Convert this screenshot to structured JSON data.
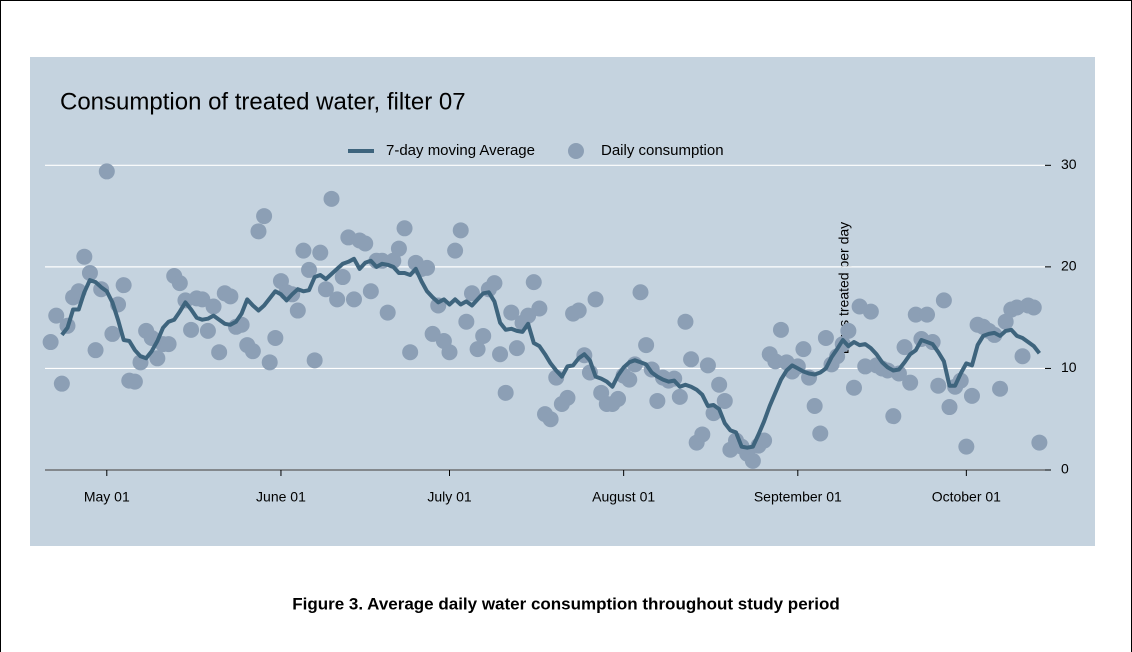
{
  "chart_data": {
    "type": "line",
    "title": "Consumption of treated water, filter 07",
    "y_label": "Litres treated per day",
    "legend": "top",
    "grid": true,
    "xlim": [
      110,
      288
    ],
    "xticks": [
      {
        "value": 121,
        "label": "May 01"
      },
      {
        "value": 152,
        "label": "June 01"
      },
      {
        "value": 182,
        "label": "July 01"
      },
      {
        "value": 213,
        "label": "August 01"
      },
      {
        "value": 244,
        "label": "September 01"
      },
      {
        "value": 274,
        "label": "October 01"
      }
    ],
    "ylim": [
      0,
      32
    ],
    "yticks": [
      0,
      10,
      20,
      30
    ],
    "x": [
      111,
      112,
      113,
      114,
      115,
      116,
      117,
      118,
      119,
      120,
      121,
      122,
      123,
      124,
      125,
      126,
      127,
      128,
      129,
      130,
      131,
      132,
      133,
      134,
      135,
      136,
      137,
      138,
      139,
      140,
      141,
      142,
      143,
      144,
      145,
      146,
      147,
      148,
      149,
      150,
      151,
      152,
      153,
      154,
      155,
      156,
      157,
      158,
      159,
      160,
      161,
      162,
      163,
      164,
      165,
      166,
      167,
      168,
      169,
      170,
      171,
      172,
      173,
      174,
      175,
      176,
      177,
      178,
      179,
      180,
      181,
      182,
      183,
      184,
      185,
      186,
      187,
      188,
      189,
      190,
      191,
      192,
      193,
      194,
      195,
      196,
      197,
      198,
      199,
      200,
      201,
      202,
      203,
      204,
      205,
      206,
      207,
      208,
      209,
      210,
      211,
      212,
      213,
      214,
      215,
      216,
      217,
      218,
      219,
      220,
      221,
      222,
      223,
      224,
      225,
      226,
      227,
      228,
      229,
      230,
      231,
      232,
      233,
      234,
      235,
      236,
      237,
      238,
      239,
      240,
      241,
      242,
      243,
      244,
      245,
      246,
      247,
      248,
      249,
      250,
      251,
      252,
      253,
      254,
      255,
      256,
      257,
      258,
      259,
      260,
      261,
      262,
      263,
      264,
      265,
      266,
      267,
      268,
      269,
      270,
      271,
      272,
      273,
      274,
      275,
      276,
      277,
      278,
      279,
      280,
      281,
      282,
      283,
      284,
      285,
      286,
      287
    ],
    "series": [
      {
        "name": "7-day moving Average",
        "type": "line",
        "color": "#3e647d",
        "values": [
          null,
          null,
          13.3,
          14,
          15.8,
          15.8,
          17.5,
          18.7,
          18.5,
          18,
          17.6,
          16.5,
          14.8,
          12.8,
          12.7,
          11.8,
          11.2,
          11,
          11.7,
          12.7,
          14,
          14.6,
          14.8,
          15.6,
          16.5,
          15.8,
          15,
          14.8,
          14.9,
          15.2,
          14.8,
          14.4,
          14.3,
          14.6,
          15.4,
          16.8,
          16.2,
          15.7,
          16.2,
          16.9,
          17.6,
          17.3,
          16.7,
          17.3,
          17.8,
          17.6,
          17.7,
          19,
          19.2,
          18.8,
          19.3,
          19.8,
          20.3,
          20.5,
          20.8,
          19.8,
          20.4,
          20.6,
          20,
          20.3,
          20.2,
          20,
          19.4,
          19.4,
          19.2,
          19.8,
          18.6,
          17.6,
          17,
          16.5,
          16.8,
          16.3,
          16.8,
          16.3,
          16.6,
          16.2,
          16.8,
          17.4,
          17.5,
          16.6,
          14.5,
          13.8,
          13.9,
          13.7,
          13.6,
          14.4,
          12.5,
          12.2,
          11.4,
          10.5,
          9.8,
          9.2,
          10.2,
          10.3,
          11,
          11.4,
          10.8,
          9.2,
          9,
          8.7,
          8.2,
          9.3,
          10.1,
          10.6,
          10.8,
          10.6,
          10.4,
          9.6,
          9.2,
          8.9,
          8.7,
          8.8,
          8.2,
          8.4,
          8.2,
          7.9,
          7.4,
          6.3,
          6.4,
          6,
          4.6,
          3.9,
          3.7,
          2.3,
          2.2,
          2.3,
          3.5,
          4.8,
          6.3,
          7.6,
          8.9,
          9.8,
          10.3,
          10,
          9.7,
          9.5,
          9.4,
          9.6,
          10,
          11.1,
          11.9,
          12.8,
          12.2,
          12.6,
          12.3,
          12.4,
          12,
          11.4,
          10.6,
          10.1,
          9.8,
          9.9,
          10.6,
          11.4,
          11.8,
          12.8,
          12.6,
          12.4,
          11.6,
          10.7,
          8.3,
          8.3,
          9.5,
          10.5,
          10.3,
          12.3,
          13.2,
          13.4,
          13.5,
          13.2,
          13.7,
          13.8,
          13.2,
          13,
          12.6,
          12.2,
          11.5
        ]
      },
      {
        "name": "Daily consumption",
        "type": "scatter",
        "color": "#8c9fb5",
        "values": [
          12.6,
          15.2,
          8.5,
          14.2,
          17,
          17.6,
          21,
          19.4,
          11.8,
          17.8,
          29.4,
          13.4,
          16.3,
          18.2,
          8.8,
          8.7,
          10.6,
          13.7,
          13,
          11,
          12.4,
          12.4,
          19.1,
          18.4,
          16.7,
          13.8,
          16.9,
          16.8,
          13.7,
          16.1,
          11.6,
          17.4,
          17.1,
          14.1,
          14.3,
          12.3,
          11.7,
          23.5,
          25,
          10.6,
          13,
          18.6,
          17.5,
          17.3,
          15.7,
          21.6,
          19.7,
          10.8,
          21.4,
          17.8,
          26.7,
          16.8,
          19,
          22.9,
          16.8,
          22.6,
          22.3,
          17.6,
          20.6,
          20.6,
          15.5,
          20.6,
          21.8,
          23.8,
          11.6,
          20.4,
          19.8,
          19.9,
          13.4,
          16.2,
          12.7,
          11.6,
          21.6,
          23.6,
          14.6,
          17.4,
          11.9,
          13.2,
          17.8,
          18.4,
          11.4,
          7.6,
          15.5,
          12,
          14.5,
          15.2,
          18.5,
          15.9,
          5.5,
          5,
          9.1,
          6.5,
          7.1,
          15.4,
          15.7,
          11.3,
          9.6,
          16.8,
          7.6,
          6.5,
          6.5,
          7,
          9.3,
          8.9,
          10.4,
          17.5,
          12.3,
          9.9,
          6.8,
          9.1,
          8.8,
          9,
          7.2,
          14.6,
          10.9,
          2.7,
          3.5,
          10.3,
          5.6,
          8.4,
          6.8,
          2,
          2.9,
          2.3,
          1.6,
          0.9,
          2.4,
          2.9,
          11.4,
          10.7,
          13.8,
          10.6,
          9.7,
          10.2,
          11.9,
          9.1,
          6.3,
          3.6,
          13,
          10.4,
          11.2,
          12.4,
          13.7,
          8.1,
          16.1,
          10.2,
          15.6,
          10.3,
          10,
          9.8,
          5.3,
          9.5,
          12.1,
          8.6,
          15.3,
          12.9,
          15.3,
          12.6,
          8.3,
          16.7,
          6.2,
          8.2,
          8.8,
          2.3,
          7.3,
          14.3,
          14.1,
          13.7,
          13.3,
          8,
          14.6,
          15.8,
          16,
          11.2,
          16.2,
          16,
          2.7
        ]
      }
    ]
  },
  "figure": {
    "caption": "Figure 3. Average daily water consumption throughout study period"
  }
}
